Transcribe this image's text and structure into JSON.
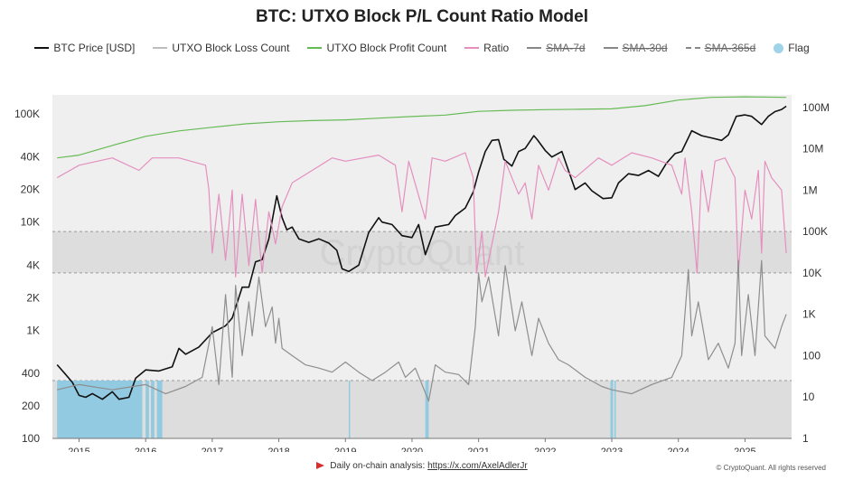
{
  "title": "BTC: UTXO Block P/L Count Ratio Model",
  "legend": [
    {
      "label": "BTC Price [USD]",
      "color": "#111111",
      "style": "solid",
      "struck": false
    },
    {
      "label": "UTXO Block Loss Count",
      "color": "#bdbdbd",
      "style": "solid",
      "struck": false
    },
    {
      "label": "UTXO Block Profit Count",
      "color": "#66bb55",
      "style": "solid",
      "struck": false
    },
    {
      "label": "Ratio",
      "color": "#e58fbf",
      "style": "solid",
      "struck": false
    },
    {
      "label": "SMA-7d",
      "color": "#888888",
      "style": "solid",
      "struck": true
    },
    {
      "label": "SMA-30d",
      "color": "#888888",
      "style": "solid",
      "struck": true
    },
    {
      "label": "SMA-365d",
      "color": "#888888",
      "style": "dashed",
      "struck": true
    },
    {
      "label": "Flag",
      "color": "#9fd3ea",
      "style": "dot",
      "struck": false
    }
  ],
  "watermark": "CryptoQuant",
  "footer": {
    "text": "Daily on-chain analysis: ",
    "link": "https://x.com/AxelAdlerJr"
  },
  "copyright": "© CryptoQuant. All rights reserved",
  "chart_data": {
    "type": "line",
    "x_ticks": [
      "2015",
      "2016",
      "2017",
      "2018",
      "2019",
      "2020",
      "2021",
      "2022",
      "2023",
      "2024",
      "2025"
    ],
    "x_range": [
      2014.6,
      2025.7
    ],
    "left_axis": {
      "scale": "log",
      "range": [
        100,
        150000
      ],
      "ticks": [
        100,
        200,
        400,
        1000,
        2000,
        4000,
        10000,
        20000,
        40000,
        100000
      ],
      "tick_labels": [
        "100",
        "200",
        "400",
        "1K",
        "2K",
        "4K",
        "10K",
        "20K",
        "40K",
        "100K"
      ]
    },
    "right_axis": {
      "scale": "log",
      "range": [
        1,
        200000000
      ],
      "ticks": [
        1,
        10,
        100,
        1000,
        10000,
        100000,
        1000000,
        10000000,
        100000000
      ],
      "tick_labels": [
        "1",
        "10",
        "100",
        "1K",
        "10K",
        "100K",
        "1M",
        "10M",
        "100M"
      ]
    },
    "bands_right_units": [
      [
        1,
        25
      ],
      [
        10000,
        100000
      ]
    ],
    "series": [
      {
        "name": "BTC Price [USD]",
        "axis": "left",
        "color": "#111111",
        "points": [
          [
            2014.67,
            480
          ],
          [
            2014.8,
            390
          ],
          [
            2014.9,
            330
          ],
          [
            2015.0,
            250
          ],
          [
            2015.1,
            240
          ],
          [
            2015.2,
            260
          ],
          [
            2015.35,
            230
          ],
          [
            2015.5,
            270
          ],
          [
            2015.6,
            230
          ],
          [
            2015.75,
            240
          ],
          [
            2015.85,
            360
          ],
          [
            2016.0,
            430
          ],
          [
            2016.2,
            420
          ],
          [
            2016.4,
            460
          ],
          [
            2016.5,
            680
          ],
          [
            2016.6,
            600
          ],
          [
            2016.8,
            700
          ],
          [
            2017.0,
            950
          ],
          [
            2017.2,
            1100
          ],
          [
            2017.3,
            1300
          ],
          [
            2017.45,
            2500
          ],
          [
            2017.55,
            2500
          ],
          [
            2017.65,
            4300
          ],
          [
            2017.75,
            4500
          ],
          [
            2017.85,
            7000
          ],
          [
            2017.93,
            13000
          ],
          [
            2017.97,
            17500
          ],
          [
            2018.05,
            11000
          ],
          [
            2018.12,
            8500
          ],
          [
            2018.2,
            9000
          ],
          [
            2018.3,
            7000
          ],
          [
            2018.45,
            6500
          ],
          [
            2018.6,
            7000
          ],
          [
            2018.75,
            6400
          ],
          [
            2018.87,
            5500
          ],
          [
            2018.95,
            3700
          ],
          [
            2019.05,
            3500
          ],
          [
            2019.2,
            4000
          ],
          [
            2019.35,
            8000
          ],
          [
            2019.5,
            11000
          ],
          [
            2019.55,
            10000
          ],
          [
            2019.7,
            9500
          ],
          [
            2019.85,
            7500
          ],
          [
            2020.0,
            7200
          ],
          [
            2020.1,
            9500
          ],
          [
            2020.2,
            5000
          ],
          [
            2020.35,
            9000
          ],
          [
            2020.55,
            9500
          ],
          [
            2020.65,
            11500
          ],
          [
            2020.8,
            13500
          ],
          [
            2020.92,
            19000
          ],
          [
            2021.0,
            29000
          ],
          [
            2021.1,
            45000
          ],
          [
            2021.2,
            57000
          ],
          [
            2021.3,
            58000
          ],
          [
            2021.38,
            38000
          ],
          [
            2021.5,
            33000
          ],
          [
            2021.6,
            45000
          ],
          [
            2021.7,
            48000
          ],
          [
            2021.83,
            63000
          ],
          [
            2021.88,
            58000
          ],
          [
            2022.0,
            46000
          ],
          [
            2022.1,
            40000
          ],
          [
            2022.25,
            45000
          ],
          [
            2022.35,
            30000
          ],
          [
            2022.45,
            20000
          ],
          [
            2022.6,
            23000
          ],
          [
            2022.7,
            19500
          ],
          [
            2022.87,
            16500
          ],
          [
            2023.0,
            16800
          ],
          [
            2023.1,
            23000
          ],
          [
            2023.25,
            28000
          ],
          [
            2023.4,
            27000
          ],
          [
            2023.55,
            30000
          ],
          [
            2023.7,
            26500
          ],
          [
            2023.82,
            35000
          ],
          [
            2023.95,
            43000
          ],
          [
            2024.05,
            45000
          ],
          [
            2024.2,
            70000
          ],
          [
            2024.35,
            63000
          ],
          [
            2024.5,
            60000
          ],
          [
            2024.65,
            57000
          ],
          [
            2024.75,
            64000
          ],
          [
            2024.87,
            95000
          ],
          [
            2025.0,
            98000
          ],
          [
            2025.1,
            95000
          ],
          [
            2025.25,
            80000
          ],
          [
            2025.35,
            95000
          ],
          [
            2025.45,
            105000
          ],
          [
            2025.55,
            110000
          ],
          [
            2025.62,
            118000
          ]
        ]
      },
      {
        "name": "UTXO Block Profit Count",
        "axis": "right",
        "color": "#66bb55",
        "points": [
          [
            2014.67,
            6000000
          ],
          [
            2015.0,
            7000000
          ],
          [
            2015.5,
            12000000
          ],
          [
            2016.0,
            20000000
          ],
          [
            2016.5,
            27000000
          ],
          [
            2017.0,
            33000000
          ],
          [
            2017.5,
            40000000
          ],
          [
            2018.0,
            45000000
          ],
          [
            2018.5,
            48000000
          ],
          [
            2019.0,
            50000000
          ],
          [
            2019.5,
            55000000
          ],
          [
            2020.0,
            60000000
          ],
          [
            2020.5,
            65000000
          ],
          [
            2021.0,
            80000000
          ],
          [
            2021.5,
            85000000
          ],
          [
            2022.0,
            88000000
          ],
          [
            2022.5,
            90000000
          ],
          [
            2023.0,
            92000000
          ],
          [
            2023.5,
            110000000
          ],
          [
            2024.0,
            150000000
          ],
          [
            2024.5,
            175000000
          ],
          [
            2025.0,
            180000000
          ],
          [
            2025.62,
            175000000
          ]
        ]
      },
      {
        "name": "Ratio",
        "axis": "right",
        "color": "#e58fbf",
        "points": [
          [
            2014.67,
            2000000
          ],
          [
            2015.0,
            4000000
          ],
          [
            2015.5,
            6000000
          ],
          [
            2015.9,
            3000000
          ],
          [
            2016.1,
            6000000
          ],
          [
            2016.5,
            6000000
          ],
          [
            2016.9,
            4000000
          ],
          [
            2016.95,
            1000000
          ],
          [
            2017.0,
            30000
          ],
          [
            2017.1,
            800000
          ],
          [
            2017.2,
            20000
          ],
          [
            2017.3,
            1000000
          ],
          [
            2017.35,
            8000
          ],
          [
            2017.45,
            800000
          ],
          [
            2017.55,
            15000
          ],
          [
            2017.65,
            600000
          ],
          [
            2017.75,
            10000
          ],
          [
            2017.85,
            300000
          ],
          [
            2017.95,
            50000
          ],
          [
            2018.05,
            400000
          ],
          [
            2018.2,
            1500000
          ],
          [
            2018.5,
            3000000
          ],
          [
            2018.8,
            6000000
          ],
          [
            2019.0,
            5000000
          ],
          [
            2019.5,
            7000000
          ],
          [
            2019.75,
            4000000
          ],
          [
            2019.85,
            300000
          ],
          [
            2019.95,
            5000000
          ],
          [
            2020.2,
            200000
          ],
          [
            2020.3,
            6000000
          ],
          [
            2020.5,
            5000000
          ],
          [
            2020.8,
            8000000
          ],
          [
            2020.92,
            2000000
          ],
          [
            2020.97,
            10000
          ],
          [
            2021.05,
            100000
          ],
          [
            2021.1,
            8000
          ],
          [
            2021.3,
            300000
          ],
          [
            2021.4,
            5000000
          ],
          [
            2021.6,
            800000
          ],
          [
            2021.7,
            1500000
          ],
          [
            2021.8,
            200000
          ],
          [
            2021.9,
            4000000
          ],
          [
            2022.05,
            1000000
          ],
          [
            2022.2,
            6000000
          ],
          [
            2022.3,
            3000000
          ],
          [
            2022.45,
            2000000
          ],
          [
            2022.8,
            6000000
          ],
          [
            2023.0,
            4000000
          ],
          [
            2023.3,
            8000000
          ],
          [
            2023.6,
            6000000
          ],
          [
            2023.9,
            4000000
          ],
          [
            2024.05,
            800000
          ],
          [
            2024.1,
            6000000
          ],
          [
            2024.2,
            300000
          ],
          [
            2024.28,
            10000
          ],
          [
            2024.35,
            3000000
          ],
          [
            2024.45,
            300000
          ],
          [
            2024.55,
            5000000
          ],
          [
            2024.7,
            6000000
          ],
          [
            2024.85,
            2000000
          ],
          [
            2024.9,
            10000
          ],
          [
            2025.0,
            1000000
          ],
          [
            2025.1,
            200000
          ],
          [
            2025.2,
            3000000
          ],
          [
            2025.25,
            30000
          ],
          [
            2025.3,
            5000000
          ],
          [
            2025.4,
            2000000
          ],
          [
            2025.55,
            1000000
          ],
          [
            2025.62,
            30000
          ]
        ]
      },
      {
        "name": "UTXO Block Loss Count",
        "axis": "right",
        "color": "#8e8e8e",
        "points": [
          [
            2014.67,
            15
          ],
          [
            2015.0,
            20
          ],
          [
            2015.5,
            15
          ],
          [
            2016.0,
            20
          ],
          [
            2016.3,
            12
          ],
          [
            2016.6,
            18
          ],
          [
            2016.85,
            30
          ],
          [
            2017.0,
            500
          ],
          [
            2017.1,
            20
          ],
          [
            2017.2,
            3000
          ],
          [
            2017.3,
            30
          ],
          [
            2017.35,
            5000
          ],
          [
            2017.45,
            100
          ],
          [
            2017.55,
            2000
          ],
          [
            2017.6,
            300
          ],
          [
            2017.7,
            8000
          ],
          [
            2017.8,
            500
          ],
          [
            2017.9,
            1500
          ],
          [
            2017.95,
            200
          ],
          [
            2018.0,
            800
          ],
          [
            2018.05,
            150
          ],
          [
            2018.2,
            100
          ],
          [
            2018.4,
            60
          ],
          [
            2018.6,
            50
          ],
          [
            2018.8,
            40
          ],
          [
            2019.0,
            70
          ],
          [
            2019.2,
            40
          ],
          [
            2019.4,
            25
          ],
          [
            2019.6,
            40
          ],
          [
            2019.8,
            70
          ],
          [
            2019.9,
            30
          ],
          [
            2020.05,
            50
          ],
          [
            2020.15,
            20
          ],
          [
            2020.25,
            8
          ],
          [
            2020.35,
            60
          ],
          [
            2020.5,
            40
          ],
          [
            2020.7,
            35
          ],
          [
            2020.85,
            20
          ],
          [
            2020.95,
            500
          ],
          [
            2021.0,
            10000
          ],
          [
            2021.05,
            2000
          ],
          [
            2021.15,
            8000
          ],
          [
            2021.3,
            300
          ],
          [
            2021.4,
            15000
          ],
          [
            2021.55,
            400
          ],
          [
            2021.65,
            2000
          ],
          [
            2021.8,
            100
          ],
          [
            2021.9,
            800
          ],
          [
            2022.05,
            200
          ],
          [
            2022.2,
            80
          ],
          [
            2022.35,
            60
          ],
          [
            2022.6,
            30
          ],
          [
            2022.85,
            18
          ],
          [
            2023.0,
            15
          ],
          [
            2023.3,
            12
          ],
          [
            2023.6,
            20
          ],
          [
            2023.9,
            30
          ],
          [
            2024.05,
            100
          ],
          [
            2024.15,
            12000
          ],
          [
            2024.2,
            300
          ],
          [
            2024.3,
            2000
          ],
          [
            2024.45,
            80
          ],
          [
            2024.6,
            200
          ],
          [
            2024.75,
            50
          ],
          [
            2024.85,
            200
          ],
          [
            2024.9,
            20000
          ],
          [
            2024.95,
            100
          ],
          [
            2025.05,
            3000
          ],
          [
            2025.15,
            100
          ],
          [
            2025.25,
            20000
          ],
          [
            2025.3,
            300
          ],
          [
            2025.45,
            150
          ],
          [
            2025.55,
            500
          ],
          [
            2025.62,
            1000
          ]
        ]
      }
    ],
    "flag_spans": [
      [
        2014.67,
        2015.95
      ],
      [
        2016.0,
        2016.05
      ],
      [
        2016.08,
        2016.13
      ],
      [
        2016.17,
        2016.25
      ],
      [
        2019.05,
        2019.07
      ],
      [
        2020.2,
        2020.25
      ],
      [
        2022.98,
        2023.02
      ],
      [
        2023.04,
        2023.06
      ]
    ]
  }
}
